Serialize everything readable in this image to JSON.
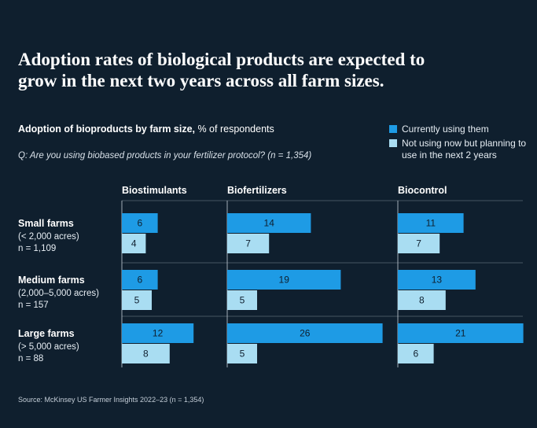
{
  "title_line1": "Adoption rates of biological products are expected to",
  "title_line2": "grow in the next two years across all farm sizes.",
  "subtitle_bold": "Adoption of bioproducts by farm size,",
  "subtitle_rest": " % of respondents",
  "question": "Q: Are you using biobased products in your fertilizer protocol? (n = 1,354)",
  "source": "Source: McKinsey US Farmer Insights 2022–23 (n = 1,354)",
  "legend": [
    {
      "label": "Currently using them",
      "color": "#1e9be5"
    },
    {
      "label": "Not using now but planning to use in the next 2 years",
      "color": "#a9ddf2"
    }
  ],
  "rows": [
    {
      "name": "Small farms",
      "detail": "(< 2,000 acres)",
      "n": "n = 1,109"
    },
    {
      "name": "Medium farms",
      "detail": "(2,000–5,000 acres)",
      "n": "n = 157"
    },
    {
      "name": "Large farms",
      "detail": "(> 5,000 acres)",
      "n": "n = 88"
    }
  ],
  "chart_data": {
    "type": "bar",
    "orientation": "horizontal",
    "categories": [
      "Small farms",
      "Medium farms",
      "Large farms"
    ],
    "panels": [
      {
        "title": "Biostimulants",
        "series": [
          {
            "name": "Currently using them",
            "values": [
              6,
              6,
              12
            ]
          },
          {
            "name": "Not using now but planning to use in the next 2 years",
            "values": [
              4,
              5,
              8
            ]
          }
        ]
      },
      {
        "title": "Biofertilizers",
        "series": [
          {
            "name": "Currently using them",
            "values": [
              14,
              19,
              26
            ]
          },
          {
            "name": "Not using now but planning to use in the next 2 years",
            "values": [
              7,
              5,
              5
            ]
          }
        ]
      },
      {
        "title": "Biocontrol",
        "series": [
          {
            "name": "Currently using them",
            "values": [
              11,
              13,
              21
            ]
          },
          {
            "name": "Not using now but planning to use in the next 2 years",
            "values": [
              7,
              8,
              6
            ]
          }
        ]
      }
    ],
    "colors": {
      "current": "#1e9be5",
      "planned": "#a9ddf2",
      "current_text": "#0f1f2e",
      "planned_text": "#0f1f2e"
    },
    "grid": false,
    "legend_position": "top-right"
  }
}
